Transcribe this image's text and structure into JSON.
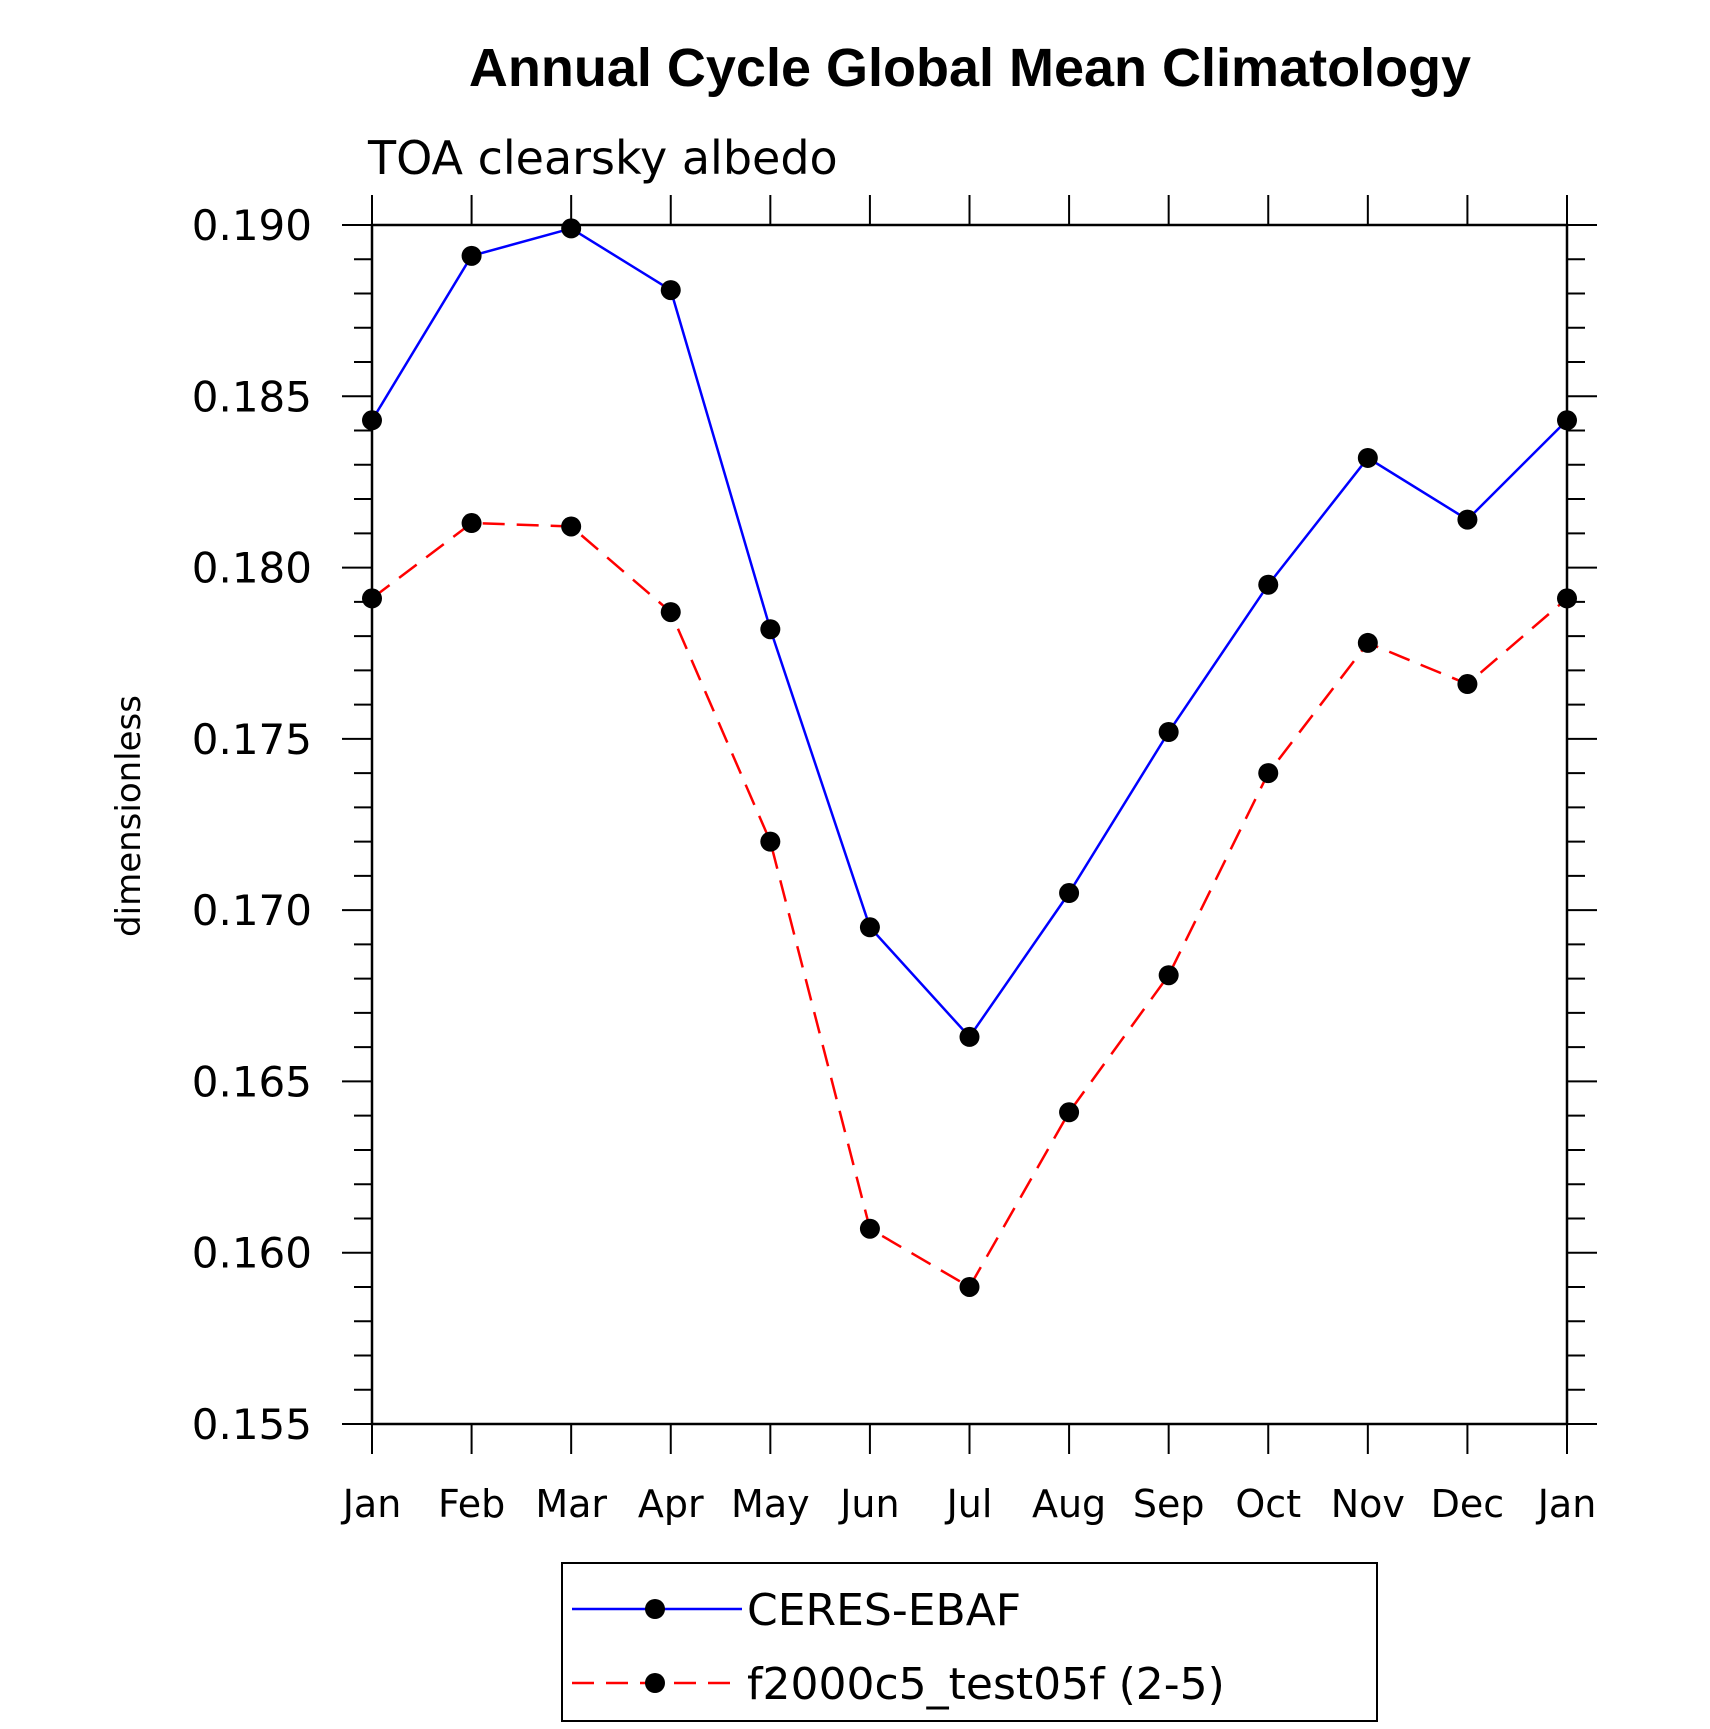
{
  "chart_data": {
    "type": "line",
    "title": "Annual Cycle Global Mean Climatology",
    "subtitle": "TOA clearsky albedo",
    "xlabel": "",
    "ylabel": "dimensionless",
    "categories": [
      "Jan",
      "Feb",
      "Mar",
      "Apr",
      "May",
      "Jun",
      "Jul",
      "Aug",
      "Sep",
      "Oct",
      "Nov",
      "Dec",
      "Jan"
    ],
    "ylim": [
      0.155,
      0.19
    ],
    "yticks": [
      "0.155",
      "0.160",
      "0.165",
      "0.170",
      "0.175",
      "0.180",
      "0.185",
      "0.190"
    ],
    "grid": false,
    "legend_position": "bottom-center",
    "series": [
      {
        "name": "CERES-EBAF",
        "color": "#0000ff",
        "dash": "solid",
        "marker": "filled-circle",
        "values": [
          0.1843,
          0.1891,
          0.1899,
          0.1881,
          0.1782,
          0.1695,
          0.1663,
          0.1705,
          0.1752,
          0.1795,
          0.1832,
          0.1814,
          0.1843
        ]
      },
      {
        "name": "f2000c5_test05f (2-5)",
        "color": "#ff0000",
        "dash": "dashed",
        "marker": "filled-circle",
        "values": [
          0.1791,
          0.1813,
          0.1812,
          0.1787,
          0.172,
          0.1607,
          0.159,
          0.1641,
          0.1681,
          0.174,
          0.1778,
          0.1766,
          0.1791
        ]
      }
    ]
  }
}
